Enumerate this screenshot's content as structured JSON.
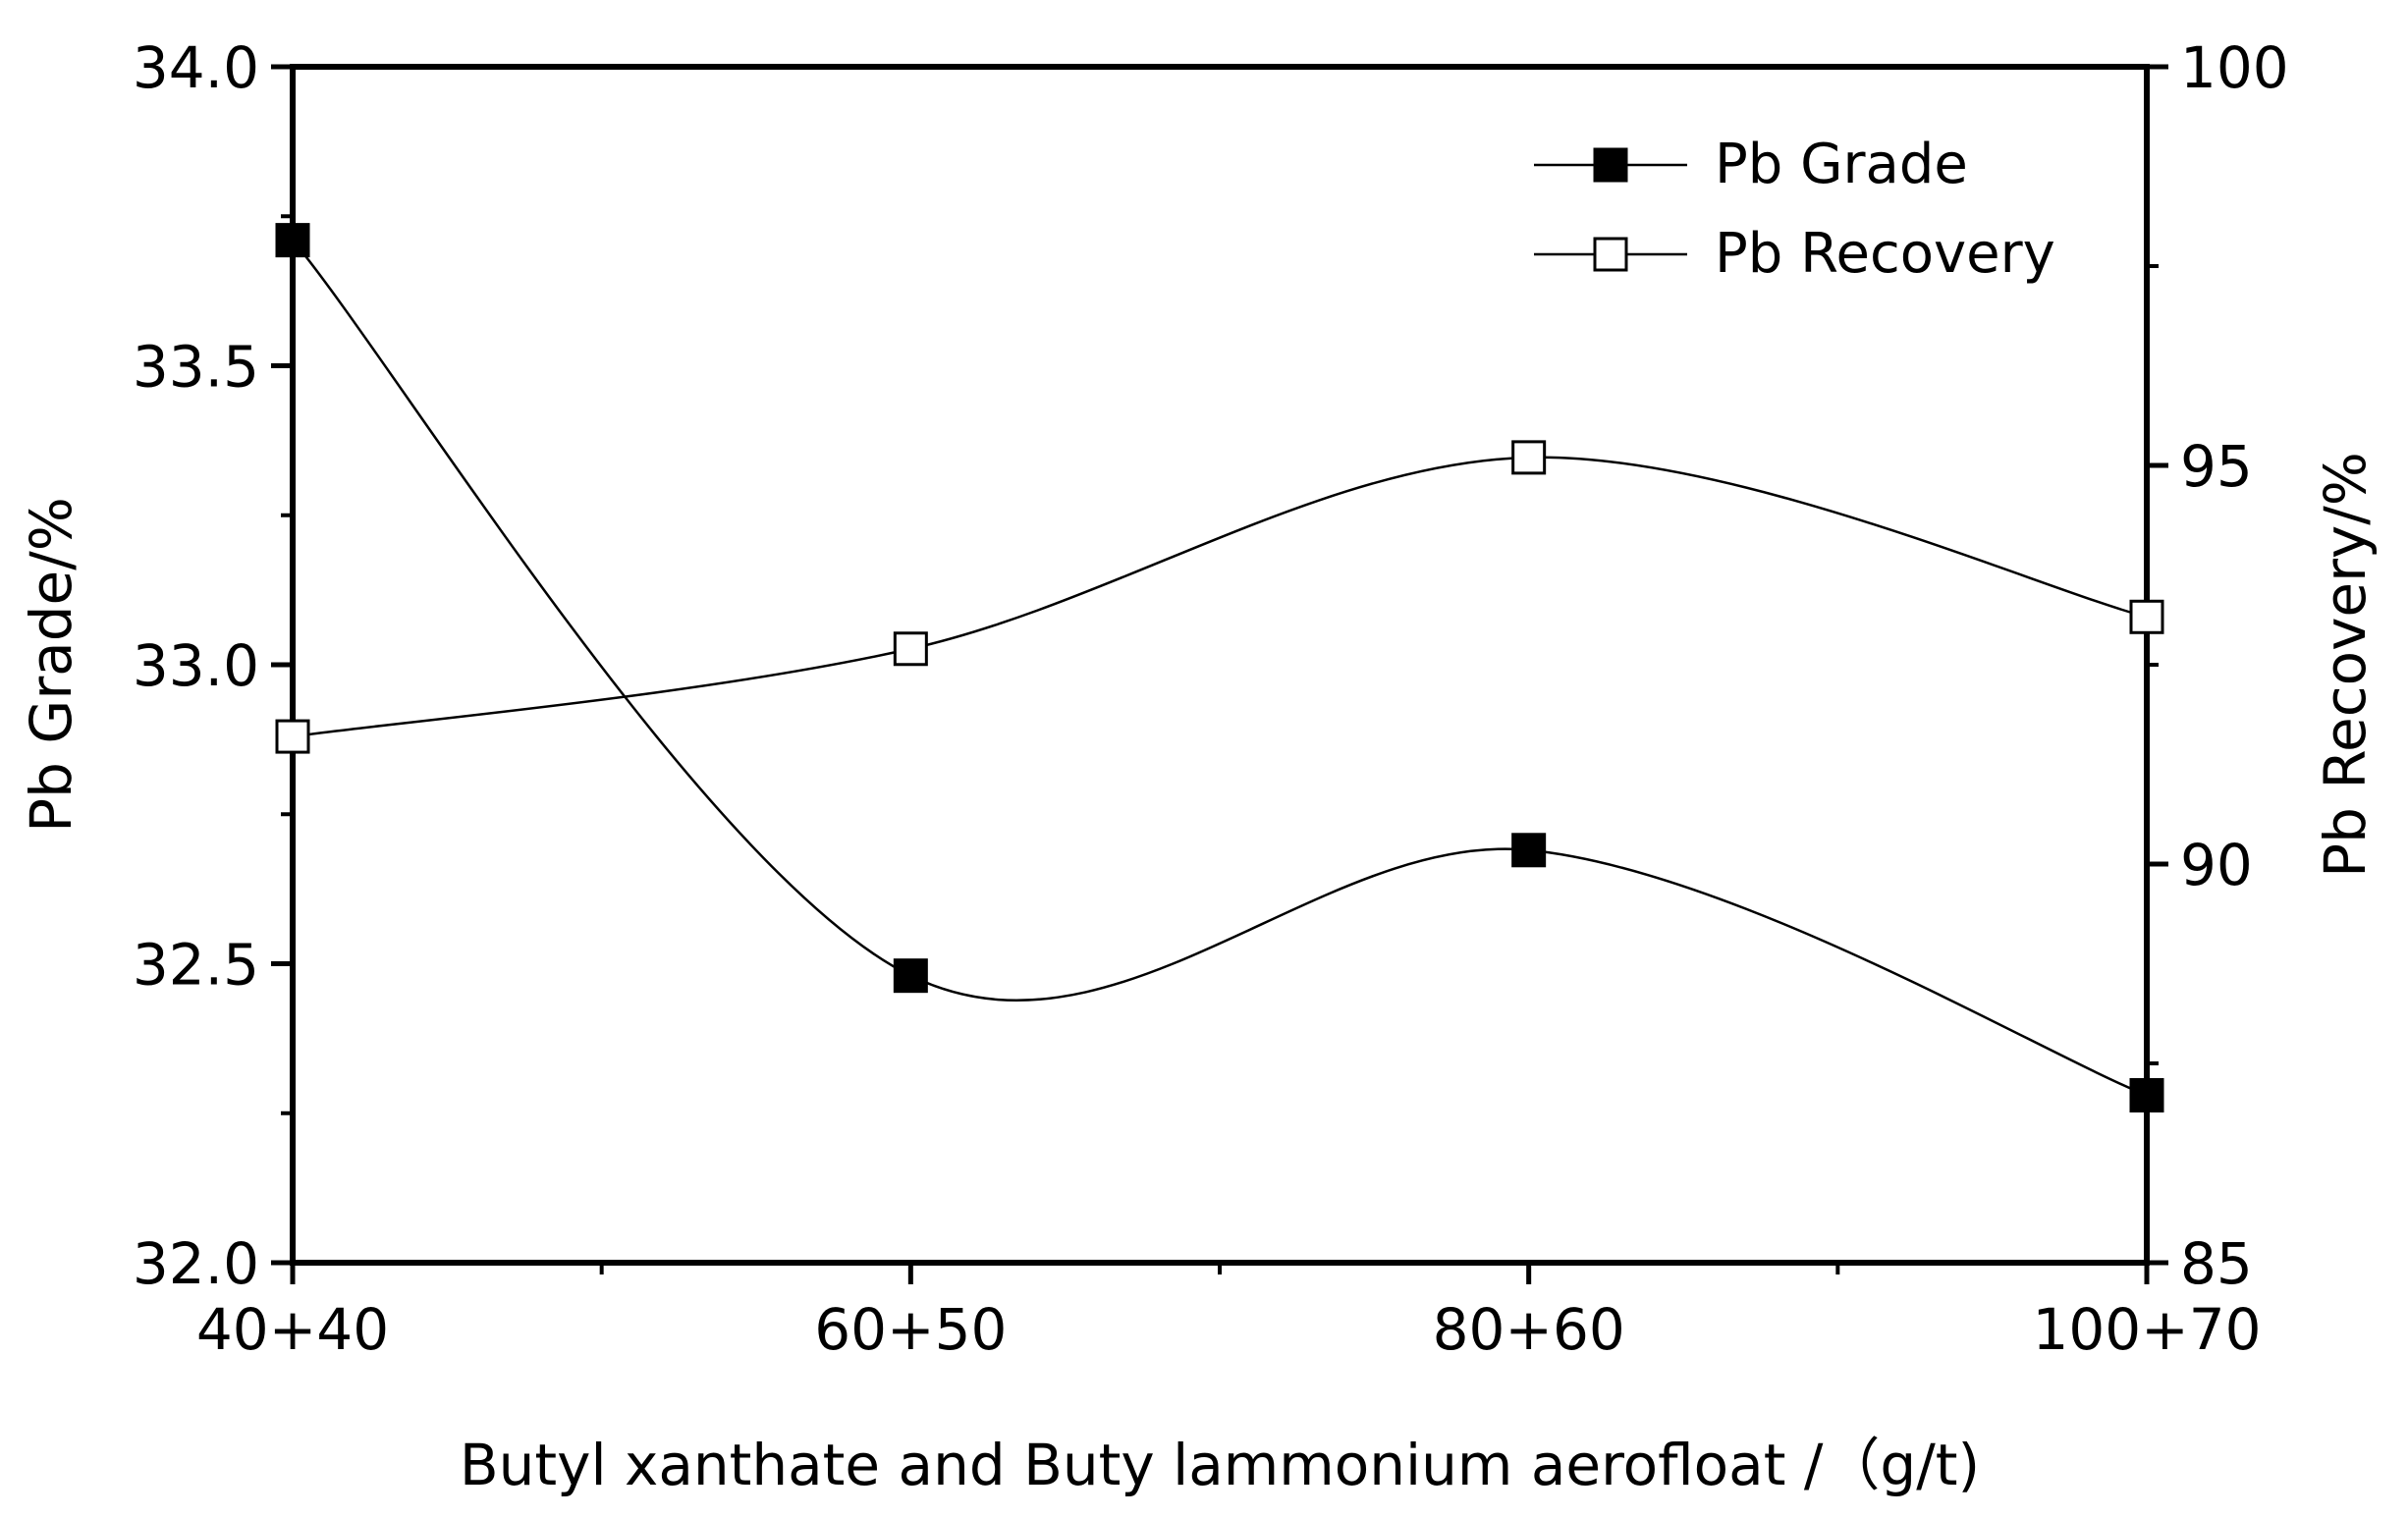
{
  "chart_data": {
    "type": "line",
    "title": "",
    "xlabel": "Butyl xanthate and Buty lammonium aerofloat /（g/t)",
    "ylabel": "Pb Grade/%",
    "y2label": "Pb Recovery/%",
    "categories": [
      "40+40",
      "60+50",
      "80+60",
      "100+70"
    ],
    "ylim": [
      32.0,
      34.0
    ],
    "y2lim": [
      85,
      100
    ],
    "yticks": [
      "32.0",
      "32.5",
      "33.0",
      "33.5",
      "34.0"
    ],
    "y2ticks": [
      "85",
      "90",
      "95",
      "100"
    ],
    "legend_position": "top-right",
    "series": [
      {
        "name": "Pb Grade",
        "axis": "left",
        "marker": "filled-square",
        "values": [
          33.71,
          32.48,
          32.69,
          32.28
        ]
      },
      {
        "name": "Pb Recovery",
        "axis": "right",
        "marker": "open-square",
        "values": [
          91.6,
          92.7,
          95.1,
          93.1
        ]
      }
    ]
  }
}
